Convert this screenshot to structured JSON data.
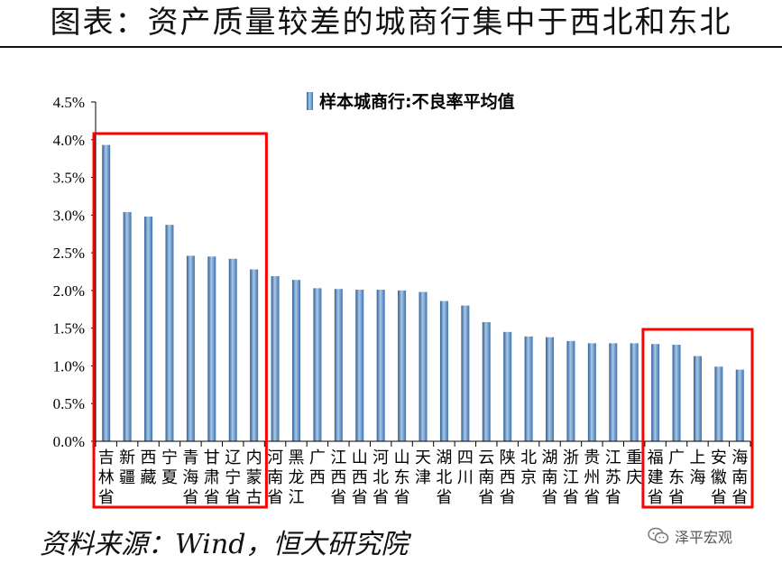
{
  "title": "图表：资产质量较差的城商行集中于西北和东北",
  "source": "资料来源：Wind，恒大研究院",
  "watermark": "泽平宏观",
  "colors": {
    "bar": "#5b8fc5",
    "bar_light": "#a9c8e8",
    "bar_dark": "#2e5e94",
    "highlight_box": "#ff0000",
    "axis": "#000000"
  },
  "icons": {
    "watermark": "wechat-chat-bubble-icon"
  },
  "chart_data": {
    "type": "bar",
    "legend": {
      "label": "样本城商行:不良率平均值",
      "position": "top-center"
    },
    "ylim": [
      0,
      4.5
    ],
    "yticks": [
      "0.0%",
      "0.5%",
      "1.0%",
      "1.5%",
      "2.0%",
      "2.5%",
      "3.0%",
      "3.5%",
      "4.0%",
      "4.5%"
    ],
    "grid": false,
    "categories": [
      "吉林省",
      "新疆",
      "西藏",
      "宁夏",
      "青海省",
      "甘肃省",
      "辽宁省",
      "内蒙古",
      "河南省",
      "黑龙江",
      "广西",
      "江西省",
      "山西省",
      "河北省",
      "山东省",
      "天津",
      "湖北省",
      "四川",
      "云南省",
      "陕西省",
      "北京",
      "湖南省",
      "浙江省",
      "贵州省",
      "江苏省",
      "重庆",
      "福建省",
      "广东省",
      "上海",
      "安徽省",
      "海南省"
    ],
    "values": [
      3.93,
      3.04,
      2.98,
      2.87,
      2.46,
      2.45,
      2.42,
      2.28,
      2.19,
      2.14,
      2.03,
      2.02,
      2.01,
      2.01,
      2.0,
      1.98,
      1.86,
      1.8,
      1.58,
      1.45,
      1.39,
      1.38,
      1.33,
      1.3,
      1.3,
      1.3,
      1.29,
      1.28,
      1.13,
      0.99,
      0.95
    ],
    "unit": "%",
    "highlight_groups": [
      {
        "from": "吉林省",
        "to": "内蒙古"
      },
      {
        "from": "福建省",
        "to": "海南省"
      }
    ]
  }
}
